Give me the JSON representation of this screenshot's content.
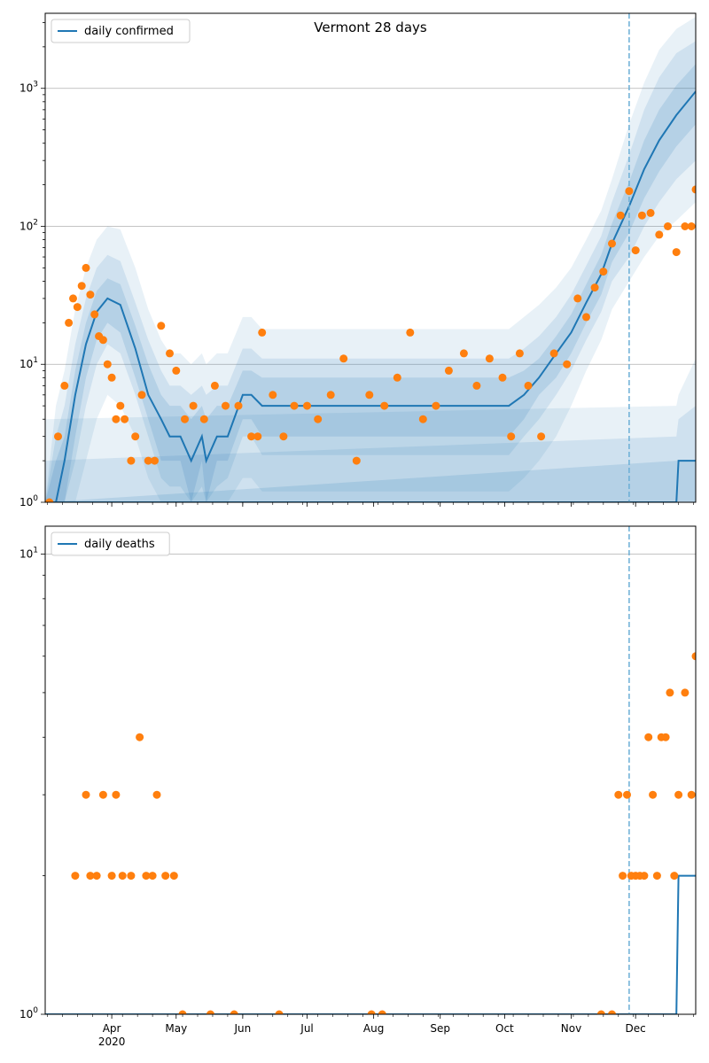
{
  "chart_data": [
    {
      "type": "line",
      "title": "Vermont 28 days",
      "yscale": "log",
      "ylim": [
        1,
        3500
      ],
      "xlim": [
        "2020-03-01",
        "2020-12-29"
      ],
      "forecast_start": "2020-11-28",
      "grid": "y-major",
      "legend_position": "top-left",
      "x_ticks": [
        "Apr\n2020",
        "May",
        "Jun",
        "Jul",
        "Aug",
        "Sep",
        "Oct",
        "Nov",
        "Dec"
      ],
      "y_ticks": [
        "10^0",
        "10^1",
        "10^2",
        "10^3"
      ],
      "series": [
        {
          "name": "daily confirmed",
          "kind": "median-line",
          "x": [
            "2020-03-01",
            "2020-03-06",
            "2020-03-10",
            "2020-03-15",
            "2020-03-20",
            "2020-03-25",
            "2020-03-30",
            "2020-04-05",
            "2020-04-12",
            "2020-04-18",
            "2020-04-24",
            "2020-04-28",
            "2020-05-03",
            "2020-05-08",
            "2020-05-13",
            "2020-05-15",
            "2020-05-20",
            "2020-05-25",
            "2020-06-01",
            "2020-06-05",
            "2020-06-10",
            "2020-06-17",
            "2020-06-25",
            "2020-07-10",
            "2020-07-25",
            "2020-08-10",
            "2020-08-25",
            "2020-09-05",
            "2020-09-15",
            "2020-09-22",
            "2020-09-28",
            "2020-10-03",
            "2020-10-10",
            "2020-10-17",
            "2020-10-25",
            "2020-11-01",
            "2020-11-08",
            "2020-11-15",
            "2020-11-20",
            "2020-11-28",
            "2020-12-05",
            "2020-12-12",
            "2020-12-20",
            "2020-12-29"
          ],
          "values": [
            1,
            1,
            2,
            6,
            14,
            24,
            30,
            27,
            13,
            6,
            4,
            3,
            3,
            2,
            3,
            2,
            3,
            3,
            6,
            6,
            5,
            5,
            5,
            5,
            5,
            5,
            5,
            5,
            5,
            5,
            5,
            5,
            6,
            8,
            12,
            17,
            28,
            45,
            75,
            140,
            260,
            420,
            640,
            950
          ],
          "band_inner": {
            "low": [
              1,
              1,
              1,
              3,
              8,
              15,
              20,
              17,
              8,
              4,
              2,
              2,
              2,
              1,
              2,
              1,
              2,
              2,
              4,
              4,
              3,
              3,
              3,
              3,
              3,
              3,
              3,
              3,
              3,
              3,
              3,
              3,
              4,
              6,
              8,
              12,
              20,
              32,
              55,
              90,
              160,
              250,
              380,
              550
            ],
            "high": [
              1,
              2,
              3,
              9,
              20,
              34,
              42,
              38,
              19,
              10,
              6,
              5,
              5,
              4,
              5,
              4,
              5,
              5,
              9,
              9,
              8,
              8,
              8,
              8,
              8,
              8,
              8,
              8,
              8,
              8,
              8,
              8,
              9,
              11,
              16,
              23,
              38,
              62,
              105,
              210,
              420,
              700,
              1050,
              1500
            ]
          },
          "band_mid": {
            "low": [
              1,
              1,
              1,
              2,
              5,
              10,
              14,
              12,
              6,
              3,
              1.5,
              1.3,
              1.3,
              1,
              1.3,
              1,
              1.3,
              1.5,
              3,
              3,
              2.2,
              2.2,
              2.2,
              2.2,
              2.2,
              2.2,
              2.2,
              2.2,
              2.2,
              2.2,
              2.2,
              2.2,
              3,
              4,
              6,
              9,
              15,
              24,
              40,
              60,
              100,
              150,
              220,
              300
            ],
            "high": [
              1,
              3,
              5,
              14,
              30,
              50,
              62,
              56,
              28,
              15,
              9,
              7,
              7,
              6,
              7,
              6,
              7,
              7,
              13,
              13,
              11,
              11,
              11,
              11,
              11,
              11,
              11,
              11,
              11,
              11,
              11,
              11,
              13,
              16,
              22,
              32,
              52,
              85,
              150,
              330,
              700,
              1200,
              1800,
              2200
            ]
          },
          "band_outer": {
            "low": [
              1,
              1,
              1,
              1,
              2,
              4,
              6,
              5,
              3,
              1.5,
              1,
              1,
              1,
              1,
              1,
              1,
              1,
              1,
              1.5,
              1.5,
              1.2,
              1.2,
              1.2,
              1.2,
              1.2,
              1.2,
              1.2,
              1.2,
              1.2,
              1.2,
              1.2,
              1.2,
              1.5,
              2,
              3,
              5,
              9,
              15,
              25,
              40,
              60,
              85,
              110,
              150
            ],
            "high": [
              1,
              5,
              9,
              25,
              50,
              80,
              100,
              95,
              50,
              25,
              15,
              12,
              12,
              10,
              12,
              10,
              12,
              12,
              22,
              22,
              18,
              18,
              18,
              18,
              18,
              18,
              18,
              18,
              18,
              18,
              18,
              18,
              22,
              27,
              36,
              50,
              80,
              130,
              220,
              550,
              1100,
              1900,
              2700,
              3300
            ]
          }
        },
        {
          "name": "observed daily confirmed",
          "kind": "points",
          "x": [
            "2020-03-03",
            "2020-03-07",
            "2020-03-10",
            "2020-03-12",
            "2020-03-14",
            "2020-03-16",
            "2020-03-18",
            "2020-03-20",
            "2020-03-22",
            "2020-03-24",
            "2020-03-26",
            "2020-03-28",
            "2020-03-30",
            "2020-04-01",
            "2020-04-03",
            "2020-04-05",
            "2020-04-07",
            "2020-04-10",
            "2020-04-12",
            "2020-04-15",
            "2020-04-18",
            "2020-04-21",
            "2020-04-24",
            "2020-04-28",
            "2020-05-01",
            "2020-05-05",
            "2020-05-09",
            "2020-05-14",
            "2020-05-19",
            "2020-05-24",
            "2020-05-30",
            "2020-06-05",
            "2020-06-08",
            "2020-06-10",
            "2020-06-15",
            "2020-06-20",
            "2020-06-25",
            "2020-07-01",
            "2020-07-06",
            "2020-07-12",
            "2020-07-18",
            "2020-07-24",
            "2020-07-30",
            "2020-08-06",
            "2020-08-12",
            "2020-08-18",
            "2020-08-24",
            "2020-08-30",
            "2020-09-05",
            "2020-09-12",
            "2020-09-18",
            "2020-09-24",
            "2020-09-30",
            "2020-10-04",
            "2020-10-08",
            "2020-10-12",
            "2020-10-18",
            "2020-10-24",
            "2020-10-30",
            "2020-11-04",
            "2020-11-08",
            "2020-11-12",
            "2020-11-16",
            "2020-11-20",
            "2020-11-24",
            "2020-11-28",
            "2020-12-01",
            "2020-12-04",
            "2020-12-08",
            "2020-12-12",
            "2020-12-16",
            "2020-12-20",
            "2020-12-24",
            "2020-12-27",
            "2020-12-29"
          ],
          "values": [
            1,
            3,
            7,
            20,
            30,
            26,
            37,
            50,
            32,
            23,
            16,
            15,
            10,
            8,
            4,
            5,
            4,
            2,
            3,
            6,
            2,
            2,
            19,
            12,
            9,
            4,
            5,
            4,
            7,
            5,
            5,
            3,
            3,
            17,
            6,
            3,
            5,
            5,
            4,
            6,
            11,
            2,
            6,
            5,
            8,
            17,
            4,
            5,
            9,
            12,
            7,
            11,
            8,
            3,
            12,
            7,
            3,
            12,
            10,
            30,
            22,
            36,
            47,
            75,
            120,
            180,
            67,
            120,
            125,
            87,
            100,
            65,
            100,
            100,
            185
          ]
        },
        {
          "name": "daily deaths",
          "kind": "median-line",
          "x": [
            "2020-03-01",
            "2020-12-20",
            "2020-12-21",
            "2020-12-29"
          ],
          "values": [
            1,
            1,
            2,
            2
          ],
          "band_inner": {
            "low": [
              1,
              1,
              1,
              1
            ],
            "high": [
              1,
              2,
              2,
              2
            ]
          },
          "band_mid": {
            "low": [
              1,
              1,
              1,
              1
            ],
            "high": [
              2,
              3,
              4,
              5
            ]
          },
          "band_outer": {
            "low": [
              1,
              1,
              1,
              1
            ],
            "high": [
              4,
              5,
              6,
              11
            ]
          }
        }
      ]
    },
    {
      "type": "scatter",
      "title": "",
      "yscale": "log",
      "ylim": [
        1,
        11.5
      ],
      "xlim": [
        "2020-03-01",
        "2020-12-29"
      ],
      "forecast_start": "2020-11-28",
      "grid": "y-major",
      "legend_position": "top-left",
      "x_ticks": [
        "Apr\n2020",
        "May",
        "Jun",
        "Jul",
        "Aug",
        "Sep",
        "Oct",
        "Nov",
        "Dec"
      ],
      "y_ticks": [
        "10^0",
        "10^1"
      ],
      "series": [
        {
          "name": "daily deaths",
          "kind": "median-line",
          "x": [
            "2020-03-01",
            "2020-12-20",
            "2020-12-21",
            "2020-12-29"
          ],
          "values": [
            1,
            1,
            2,
            2
          ]
        },
        {
          "name": "observed daily deaths",
          "kind": "points",
          "x": [
            "2020-03-15",
            "2020-03-20",
            "2020-03-22",
            "2020-03-25",
            "2020-03-28",
            "2020-04-01",
            "2020-04-03",
            "2020-04-06",
            "2020-04-10",
            "2020-04-14",
            "2020-04-17",
            "2020-04-20",
            "2020-04-22",
            "2020-04-26",
            "2020-04-30",
            "2020-05-04",
            "2020-05-17",
            "2020-05-28",
            "2020-06-18",
            "2020-07-31",
            "2020-08-05",
            "2020-11-15",
            "2020-11-20",
            "2020-11-23",
            "2020-11-25",
            "2020-11-27",
            "2020-11-29",
            "2020-12-01",
            "2020-12-03",
            "2020-12-05",
            "2020-12-07",
            "2020-12-09",
            "2020-12-11",
            "2020-12-13",
            "2020-12-15",
            "2020-12-17",
            "2020-12-19",
            "2020-12-21",
            "2020-12-24",
            "2020-12-27",
            "2020-12-29"
          ],
          "values": [
            2,
            3,
            2,
            2,
            3,
            2,
            3,
            2,
            2,
            4,
            2,
            2,
            3,
            2,
            2,
            1,
            1,
            1,
            1,
            1,
            1,
            1,
            1,
            3,
            2,
            3,
            2,
            2,
            2,
            2,
            4,
            3,
            2,
            4,
            4,
            5,
            2,
            3,
            5,
            3,
            6
          ]
        }
      ]
    }
  ]
}
